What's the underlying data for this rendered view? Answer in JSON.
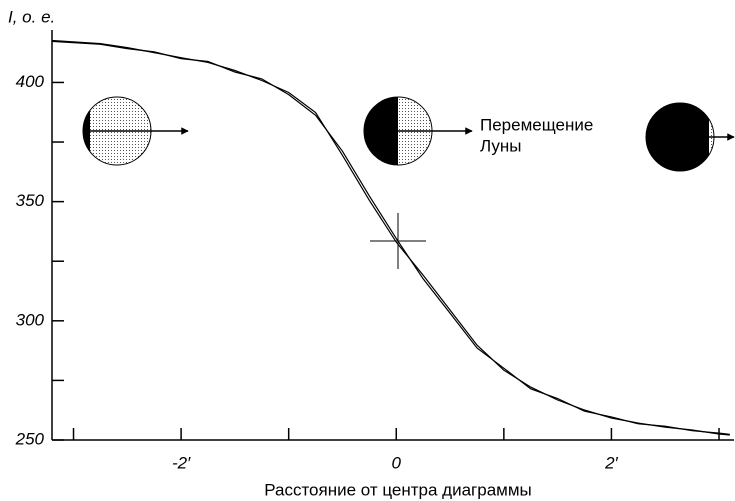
{
  "chart_data": {
    "type": "line",
    "y_label": "I, о. е.",
    "x_label": "Расстояние от центра диаграммы",
    "annotation": [
      "Перемещение",
      "Луны"
    ],
    "x": [
      -3.2,
      -2.75,
      -2.5,
      -2.25,
      -2,
      -1.75,
      -1.5,
      -1.25,
      -1,
      -0.75,
      -0.5,
      -0.25,
      0,
      0.25,
      0.5,
      0.75,
      1,
      1.25,
      1.5,
      1.75,
      2,
      2.25,
      2.5,
      2.75,
      3,
      3.1
    ],
    "series": [
      {
        "color": "#000000",
        "values": [
          417.6,
          416.3,
          414.6,
          412.5,
          410.4,
          408.4,
          405,
          400.8,
          395.8,
          387.4,
          369.4,
          350.5,
          333,
          319.1,
          304.5,
          289.8,
          279.3,
          272.2,
          266.8,
          262.6,
          259.2,
          257.1,
          255.4,
          254.2,
          252.5,
          252.1
        ]
      },
      {
        "color": "#000000",
        "values": [
          417.2,
          416,
          414.2,
          412.8,
          410,
          408.8,
          404.4,
          401.5,
          394.9,
          386.2,
          371.1,
          352.3,
          334.5,
          317.6,
          303.2,
          288.6,
          280.1,
          271.5,
          267.4,
          262.1,
          259.7,
          256.8,
          255.8,
          253.9,
          252.9,
          252.4
        ]
      }
    ],
    "xlim": [
      -3.2,
      3.13
    ],
    "ylim": [
      250,
      422
    ],
    "xticks": [
      {
        "value": -2,
        "label": "-2′"
      },
      0,
      {
        "value": 2,
        "label": "2′"
      }
    ],
    "xminor_ticks": [
      -3,
      -1,
      1,
      3
    ],
    "yticks": [
      250,
      300,
      350,
      400
    ],
    "yminor_ticks": [
      275,
      325,
      375
    ],
    "grid": false
  }
}
